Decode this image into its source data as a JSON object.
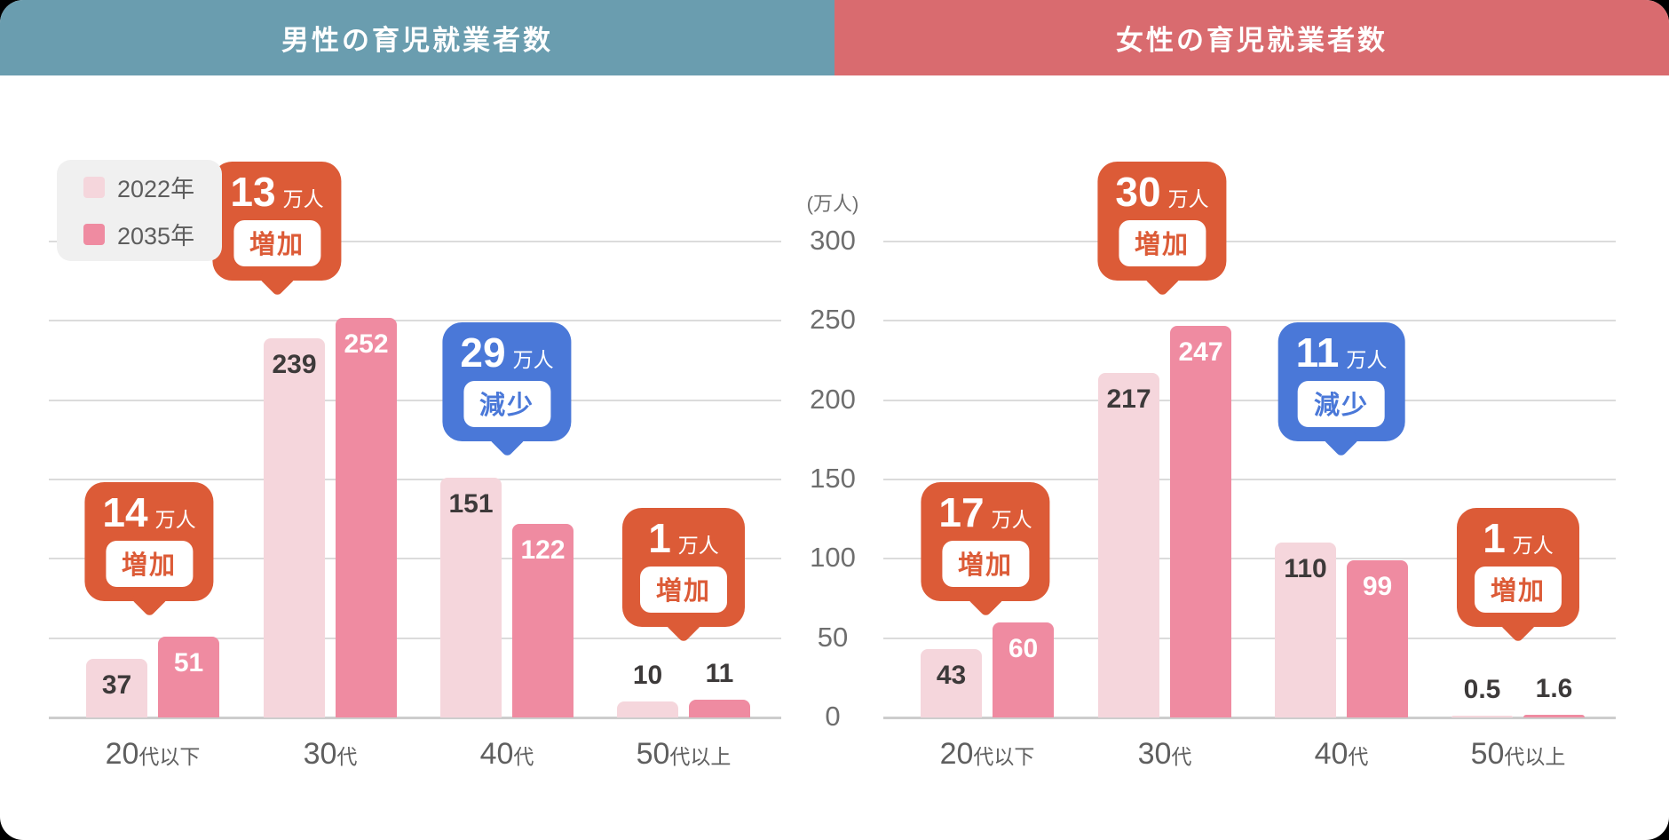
{
  "headers": {
    "male": "男性の育児就業者数",
    "female": "女性の育児就業者数"
  },
  "colors": {
    "male_header_bg": "#6A9DAF",
    "female_header_bg": "#D96B6F",
    "series_2022": "#F5D6DC",
    "series_2035": "#EF8BA1",
    "increase": "#DC5B37",
    "decrease": "#4A78D8",
    "gridline": "#DBDBDB",
    "baseline": "#CDCDCD",
    "tick_text": "#6E6E6E",
    "label_dark": "#3D3A3A",
    "label_light": "#FFFFFF",
    "legend_bg": "#F0F0F0"
  },
  "legend": {
    "items": [
      {
        "label": "2022年",
        "color_key": "series_2022"
      },
      {
        "label": "2035年",
        "color_key": "series_2035"
      }
    ]
  },
  "y_axis": {
    "unit": "(万人)",
    "ticks": [
      300,
      250,
      200,
      150,
      100,
      50,
      0
    ],
    "max": 300
  },
  "chart_data": [
    {
      "type": "bar",
      "title": "男性の育児就業者数",
      "categories": [
        "20代以下",
        "30代",
        "40代",
        "50代以上"
      ],
      "series": [
        {
          "name": "2022年",
          "values": [
            37,
            239,
            151,
            10
          ]
        },
        {
          "name": "2035年",
          "values": [
            51,
            252,
            122,
            11
          ]
        }
      ],
      "annotations": [
        {
          "category": "20代以下",
          "amount": "14",
          "unit": "万人",
          "word": "増加",
          "kind": "increase"
        },
        {
          "category": "30代",
          "amount": "13",
          "unit": "万人",
          "word": "増加",
          "kind": "increase"
        },
        {
          "category": "40代",
          "amount": "29",
          "unit": "万人",
          "word": "減少",
          "kind": "decrease"
        },
        {
          "category": "50代以上",
          "amount": "1",
          "unit": "万人",
          "word": "増加",
          "kind": "increase"
        }
      ],
      "ylim": [
        0,
        300
      ],
      "grid": true
    },
    {
      "type": "bar",
      "title": "女性の育児就業者数",
      "categories": [
        "20代以下",
        "30代",
        "40代",
        "50代以上"
      ],
      "series": [
        {
          "name": "2022年",
          "values": [
            43,
            217,
            110,
            0.5
          ]
        },
        {
          "name": "2035年",
          "values": [
            60,
            247,
            99,
            1.6
          ]
        }
      ],
      "annotations": [
        {
          "category": "20代以下",
          "amount": "17",
          "unit": "万人",
          "word": "増加",
          "kind": "increase"
        },
        {
          "category": "30代",
          "amount": "30",
          "unit": "万人",
          "word": "増加",
          "kind": "increase"
        },
        {
          "category": "40代",
          "amount": "11",
          "unit": "万人",
          "word": "減少",
          "kind": "decrease"
        },
        {
          "category": "50代以上",
          "amount": "1",
          "unit": "万人",
          "word": "増加",
          "kind": "increase"
        }
      ],
      "ylim": [
        0,
        300
      ],
      "grid": true
    }
  ]
}
